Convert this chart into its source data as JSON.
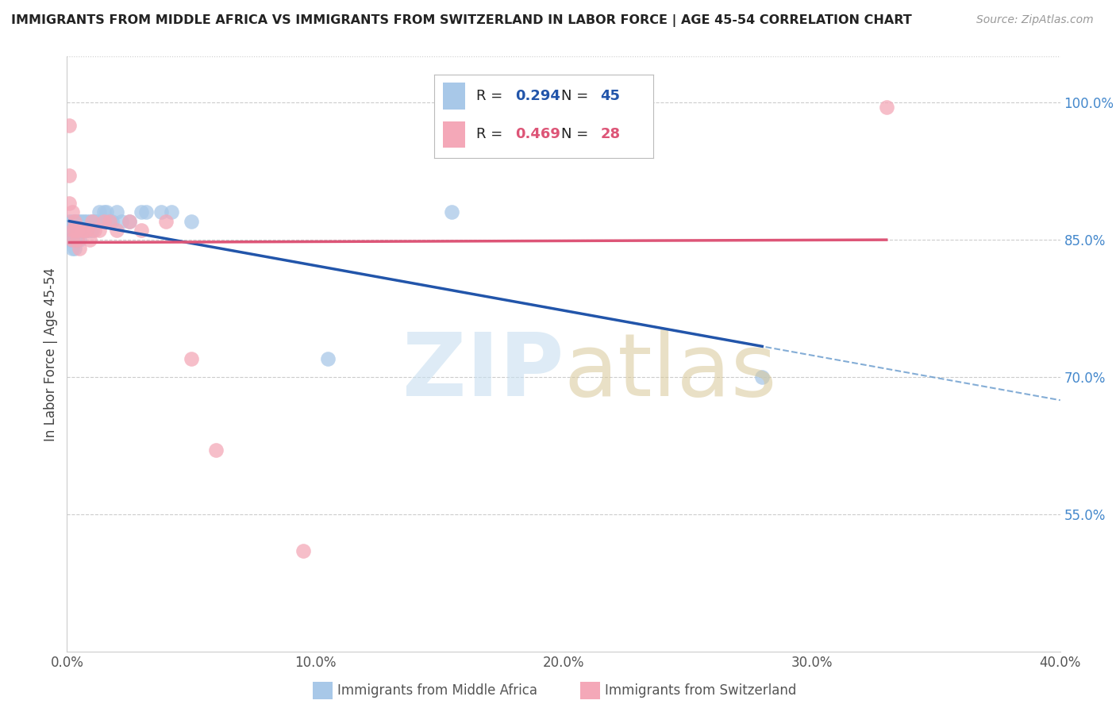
{
  "title": "IMMIGRANTS FROM MIDDLE AFRICA VS IMMIGRANTS FROM SWITZERLAND IN LABOR FORCE | AGE 45-54 CORRELATION CHART",
  "source": "Source: ZipAtlas.com",
  "ylabel": "In Labor Force | Age 45-54",
  "xlim": [
    0.0,
    0.4
  ],
  "ylim": [
    0.4,
    1.05
  ],
  "xtick_labels": [
    "0.0%",
    "10.0%",
    "20.0%",
    "30.0%",
    "40.0%"
  ],
  "xtick_values": [
    0.0,
    0.1,
    0.2,
    0.3,
    0.4
  ],
  "ytick_labels": [
    "55.0%",
    "70.0%",
    "85.0%",
    "100.0%"
  ],
  "ytick_values": [
    0.55,
    0.7,
    0.85,
    1.0
  ],
  "blue_R": 0.294,
  "blue_N": 45,
  "pink_R": 0.469,
  "pink_N": 28,
  "blue_color": "#a8c8e8",
  "pink_color": "#f4a8b8",
  "blue_line_color": "#2255aa",
  "pink_line_color": "#dd5577",
  "blue_dashed_color": "#6699cc",
  "blue_x": [
    0.001,
    0.001,
    0.001,
    0.002,
    0.002,
    0.002,
    0.002,
    0.003,
    0.003,
    0.003,
    0.003,
    0.004,
    0.004,
    0.004,
    0.005,
    0.005,
    0.005,
    0.006,
    0.006,
    0.007,
    0.008,
    0.008,
    0.009,
    0.009,
    0.01,
    0.01,
    0.011,
    0.012,
    0.013,
    0.014,
    0.015,
    0.016,
    0.017,
    0.018,
    0.02,
    0.022,
    0.025,
    0.03,
    0.032,
    0.038,
    0.042,
    0.05,
    0.105,
    0.155,
    0.28
  ],
  "blue_y": [
    0.87,
    0.86,
    0.85,
    0.87,
    0.86,
    0.85,
    0.84,
    0.87,
    0.86,
    0.85,
    0.84,
    0.87,
    0.86,
    0.85,
    0.87,
    0.86,
    0.85,
    0.87,
    0.86,
    0.87,
    0.87,
    0.86,
    0.87,
    0.86,
    0.87,
    0.86,
    0.87,
    0.87,
    0.88,
    0.87,
    0.88,
    0.88,
    0.87,
    0.87,
    0.88,
    0.87,
    0.87,
    0.88,
    0.88,
    0.88,
    0.88,
    0.87,
    0.72,
    0.88,
    0.7
  ],
  "pink_x": [
    0.001,
    0.001,
    0.001,
    0.002,
    0.002,
    0.002,
    0.003,
    0.003,
    0.004,
    0.004,
    0.005,
    0.006,
    0.007,
    0.008,
    0.009,
    0.01,
    0.011,
    0.013,
    0.015,
    0.017,
    0.02,
    0.025,
    0.03,
    0.04,
    0.05,
    0.06,
    0.095,
    0.33
  ],
  "pink_y": [
    0.975,
    0.92,
    0.89,
    0.88,
    0.86,
    0.85,
    0.87,
    0.86,
    0.86,
    0.85,
    0.84,
    0.86,
    0.86,
    0.86,
    0.85,
    0.87,
    0.86,
    0.86,
    0.87,
    0.87,
    0.86,
    0.87,
    0.86,
    0.87,
    0.72,
    0.62,
    0.51,
    0.995
  ]
}
